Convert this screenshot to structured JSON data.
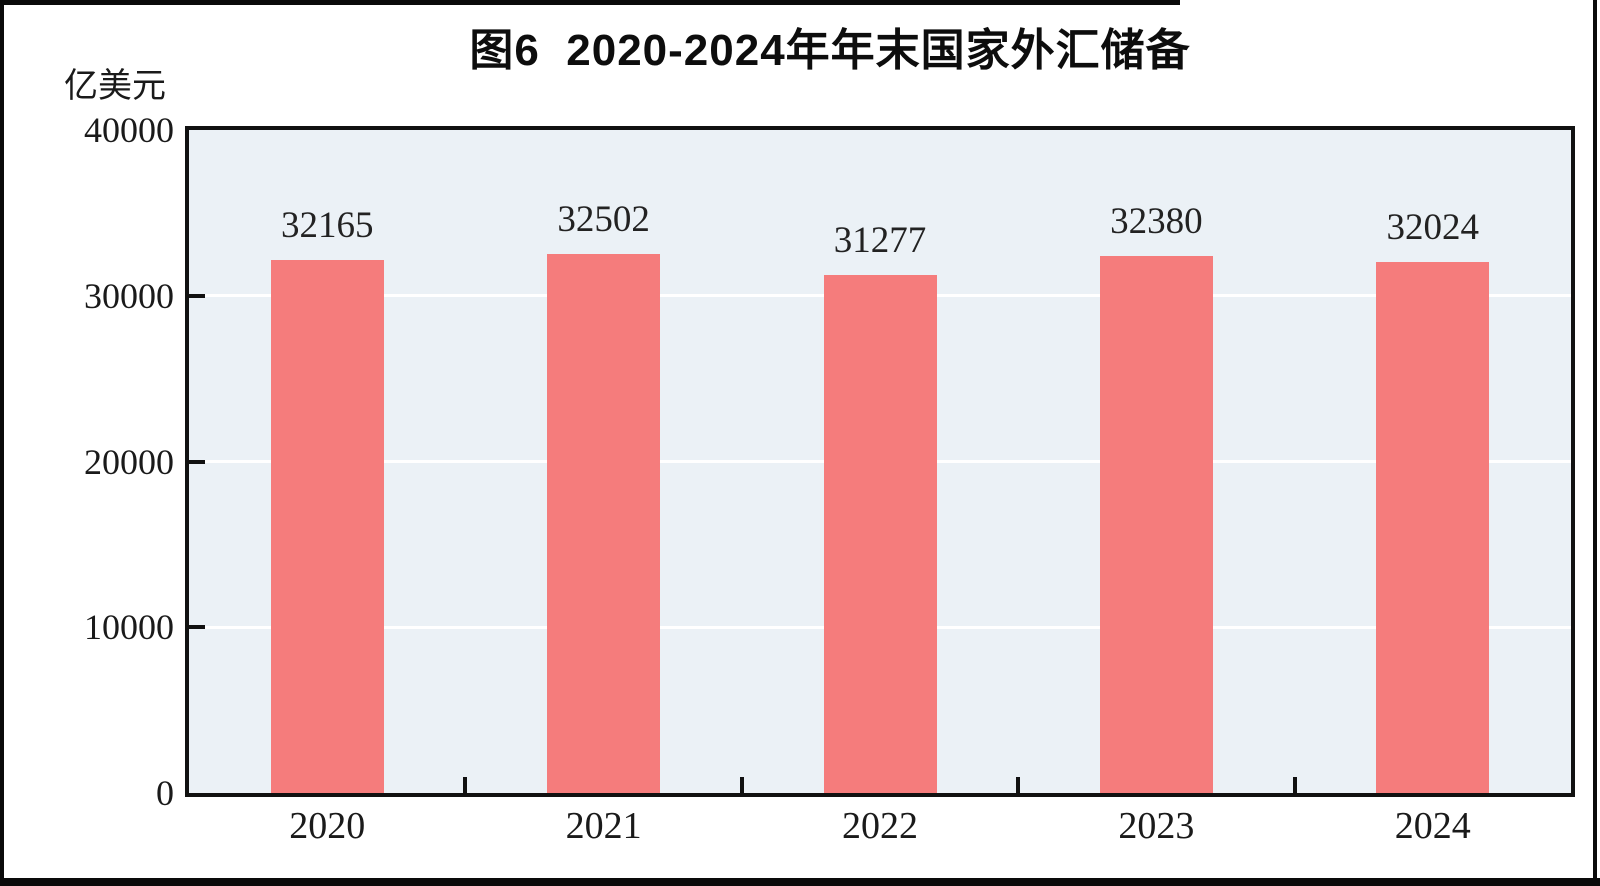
{
  "figure": {
    "title": "图6  2020-2024年年末国家外汇储备",
    "unit_label": "亿美元"
  },
  "chart_data": {
    "type": "bar",
    "title": "图6  2020-2024年年末国家外汇储备",
    "xlabel": "",
    "ylabel": "亿美元",
    "categories": [
      "2020",
      "2021",
      "2022",
      "2023",
      "2024"
    ],
    "values": [
      32165,
      32502,
      31277,
      32380,
      32024
    ],
    "data_labels": [
      "32165",
      "32502",
      "31277",
      "32380",
      "32024"
    ],
    "ylim": [
      0,
      40000
    ],
    "yticks": [
      0,
      10000,
      20000,
      30000,
      40000
    ],
    "grid": "horizontal",
    "gridline_color": "#FFFFFF",
    "legend": "none",
    "bar_color": "#F57C7C",
    "plot_bg_color": "#EBF1F6",
    "axis_color": "#111111",
    "text_color": "#1a1a1a"
  }
}
